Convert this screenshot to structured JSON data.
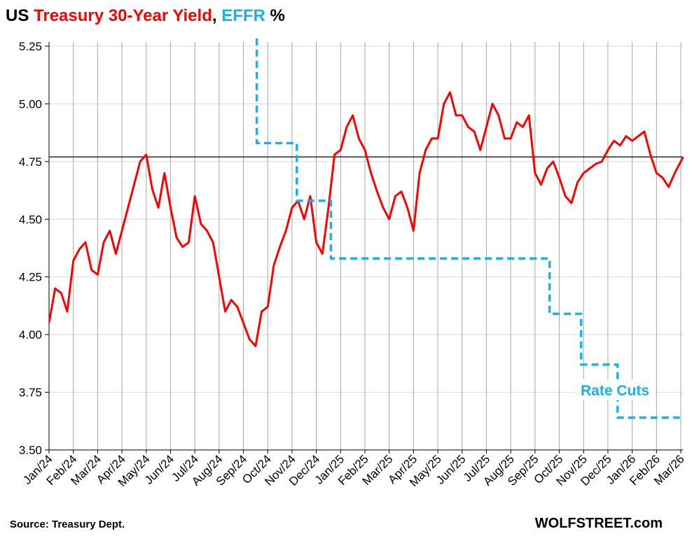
{
  "chart_data": {
    "type": "line",
    "title_prefix": "US",
    "title_separator": ",",
    "title_suffix": "%",
    "annotation": "Rate Cuts",
    "source": "Source: Treasury Dept.",
    "watermark": "WOLFSTREET.com",
    "reference_line": 4.77,
    "reference_color": "#000000",
    "grid": true,
    "xlim": [
      0,
      26.1
    ],
    "ylim": [
      3.5,
      5.25
    ],
    "yticks": [
      {
        "value": 3.5,
        "label": "3.50"
      },
      3.75,
      {
        "value": 4,
        "label": "4.00"
      },
      4.25,
      {
        "value": 4.5,
        "label": "4.50"
      },
      4.75,
      {
        "value": 5,
        "label": "5.00"
      },
      5.25
    ],
    "xticks": [
      {
        "value": 0,
        "label": "Jan/24"
      },
      {
        "value": 1,
        "label": "Feb/24"
      },
      {
        "value": 2,
        "label": "Mar/24"
      },
      {
        "value": 3,
        "label": "Apr/24"
      },
      {
        "value": 4,
        "label": "May/24"
      },
      {
        "value": 5,
        "label": "Jun/24"
      },
      {
        "value": 6,
        "label": "Jul/24"
      },
      {
        "value": 7,
        "label": "Aug/24"
      },
      {
        "value": 8,
        "label": "Sep/24"
      },
      {
        "value": 9,
        "label": "Oct/24"
      },
      {
        "value": 10,
        "label": "Nov/24"
      },
      {
        "value": 11,
        "label": "Dec/24"
      },
      {
        "value": 12,
        "label": "Jan/25"
      },
      {
        "value": 13,
        "label": "Feb/25"
      },
      {
        "value": 14,
        "label": "Mar/25"
      },
      {
        "value": 15,
        "label": "Apr/25"
      },
      {
        "value": 16,
        "label": "May/25"
      },
      {
        "value": 17,
        "label": "Jun/25"
      },
      {
        "value": 18,
        "label": "Jul/25"
      },
      {
        "value": 19,
        "label": "Aug/25"
      },
      {
        "value": 20,
        "label": "Sep/25"
      },
      {
        "value": 21,
        "label": "Oct/25"
      },
      {
        "value": 22,
        "label": "Nov/25"
      },
      {
        "value": 23,
        "label": "Dec/25"
      },
      {
        "value": 24,
        "label": "Jan/26"
      },
      {
        "value": 25,
        "label": "Feb/26"
      },
      {
        "value": 26,
        "label": "Mar/26"
      }
    ],
    "series": [
      {
        "name": "Treasury 30-Year Yield",
        "color": "#ff0000",
        "step": false,
        "x": [
          0,
          0.25,
          0.5,
          0.75,
          1,
          1.25,
          1.5,
          1.75,
          2,
          2.25,
          2.5,
          2.75,
          3,
          3.25,
          3.5,
          3.75,
          4,
          4.25,
          4.5,
          4.75,
          5,
          5.25,
          5.5,
          5.75,
          6,
          6.25,
          6.5,
          6.75,
          7,
          7.25,
          7.5,
          7.75,
          8,
          8.25,
          8.5,
          8.75,
          9,
          9.25,
          9.5,
          9.75,
          10,
          10.25,
          10.5,
          10.75,
          11,
          11.25,
          11.5,
          11.75,
          12,
          12.25,
          12.5,
          12.75,
          13,
          13.25,
          13.5,
          13.75,
          14,
          14.25,
          14.5,
          14.75,
          15,
          15.25,
          15.5,
          15.75,
          16,
          16.25,
          16.5,
          16.75,
          17,
          17.25,
          17.5,
          17.75,
          18,
          18.25,
          18.5,
          18.75,
          19,
          19.25,
          19.5,
          19.75,
          20,
          20.25,
          20.5,
          20.75,
          21,
          21.25,
          21.5,
          21.75,
          22,
          22.25,
          22.5,
          22.75,
          23,
          23.25,
          23.5,
          23.75,
          24,
          24.25,
          24.5,
          24.75,
          25,
          25.25,
          25.5,
          25.75,
          26.1
        ],
        "values": [
          4.05,
          4.2,
          4.18,
          4.1,
          4.32,
          4.37,
          4.4,
          4.28,
          4.26,
          4.4,
          4.45,
          4.35,
          4.45,
          4.55,
          4.65,
          4.75,
          4.78,
          4.63,
          4.55,
          4.7,
          4.55,
          4.42,
          4.38,
          4.4,
          4.6,
          4.48,
          4.45,
          4.4,
          4.25,
          4.1,
          4.15,
          4.12,
          4.05,
          3.98,
          3.95,
          4.1,
          4.12,
          4.3,
          4.38,
          4.45,
          4.55,
          4.58,
          4.5,
          4.6,
          4.4,
          4.35,
          4.55,
          4.78,
          4.8,
          4.9,
          4.95,
          4.85,
          4.8,
          4.7,
          4.62,
          4.55,
          4.5,
          4.6,
          4.62,
          4.55,
          4.45,
          4.7,
          4.8,
          4.85,
          4.85,
          5.0,
          5.05,
          4.95,
          4.95,
          4.9,
          4.88,
          4.8,
          4.9,
          5.0,
          4.95,
          4.85,
          4.85,
          4.92,
          4.9,
          4.95,
          4.7,
          4.65,
          4.72,
          4.75,
          4.68,
          4.6,
          4.57,
          4.66,
          4.7,
          4.72,
          4.74,
          4.75,
          4.8,
          4.84,
          4.82,
          4.86,
          4.84,
          4.86,
          4.88,
          4.78,
          4.7,
          4.68,
          4.64,
          4.7,
          4.77
        ]
      },
      {
        "name": "EFFR",
        "color": "#1ab0e8",
        "step": true,
        "x": [
          8.53,
          8.55,
          10.2,
          11.6,
          20.6,
          21.9,
          23.4,
          26.1
        ],
        "values": [
          5.33,
          4.83,
          4.58,
          4.33,
          4.09,
          3.87,
          3.64,
          3.64
        ]
      }
    ]
  }
}
